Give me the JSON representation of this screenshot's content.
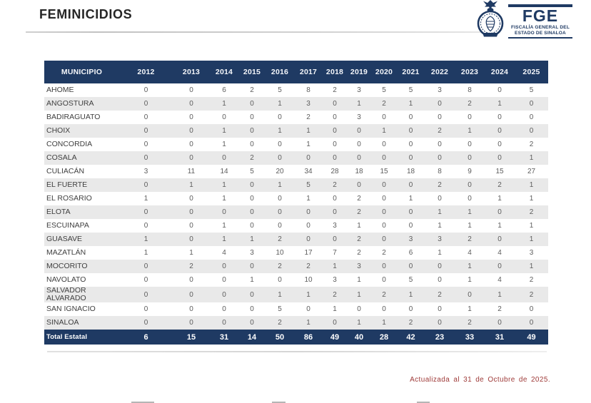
{
  "header": {
    "title": "FEMINICIDIOS"
  },
  "logo": {
    "acronym": "FGE",
    "name_line1": "FISCALÍA GENERAL DEL",
    "name_line2": "ESTADO DE SINALOA",
    "emblem": "eagle-seal-icon"
  },
  "footer": {
    "updated": "Actualizada al 31 de Octubre de 2025."
  },
  "colors": {
    "navy": "#1F3A63",
    "alt_row": "#E9E9E9",
    "note_red": "#9E3A38",
    "body_text": "#5D5D5D"
  },
  "chart_data": {
    "type": "table",
    "title": "FEMINICIDIOS",
    "columns": [
      "MUNICIPIO",
      "2012",
      "2013",
      "2014",
      "2015",
      "2016",
      "2017",
      "2018",
      "2019",
      "2020",
      "2021",
      "2022",
      "2023",
      "2024",
      "2025"
    ],
    "rows": [
      {
        "municipio": "AHOME",
        "values": [
          0,
          0,
          6,
          2,
          5,
          8,
          2,
          3,
          5,
          5,
          3,
          8,
          0,
          5
        ]
      },
      {
        "municipio": "ANGOSTURA",
        "values": [
          0,
          0,
          1,
          0,
          1,
          3,
          0,
          1,
          2,
          1,
          0,
          2,
          1,
          0
        ]
      },
      {
        "municipio": "BADIRAGUATO",
        "values": [
          0,
          0,
          0,
          0,
          0,
          2,
          0,
          3,
          0,
          0,
          0,
          0,
          0,
          0
        ]
      },
      {
        "municipio": "CHOIX",
        "values": [
          0,
          0,
          1,
          0,
          1,
          1,
          0,
          0,
          1,
          0,
          2,
          1,
          0,
          0
        ]
      },
      {
        "municipio": "CONCORDIA",
        "values": [
          0,
          0,
          1,
          0,
          0,
          1,
          0,
          0,
          0,
          0,
          0,
          0,
          0,
          2
        ]
      },
      {
        "municipio": "COSALA",
        "values": [
          0,
          0,
          0,
          2,
          0,
          0,
          0,
          0,
          0,
          0,
          0,
          0,
          0,
          1
        ]
      },
      {
        "municipio": "CULIACÁN",
        "values": [
          3,
          11,
          14,
          5,
          20,
          34,
          28,
          18,
          15,
          18,
          8,
          9,
          15,
          27
        ]
      },
      {
        "municipio": "EL FUERTE",
        "values": [
          0,
          1,
          1,
          0,
          1,
          5,
          2,
          0,
          0,
          0,
          2,
          0,
          2,
          1
        ]
      },
      {
        "municipio": "EL ROSARIO",
        "values": [
          1,
          0,
          1,
          0,
          0,
          1,
          0,
          2,
          0,
          1,
          0,
          0,
          1,
          1
        ]
      },
      {
        "municipio": "ELOTA",
        "values": [
          0,
          0,
          0,
          0,
          0,
          0,
          0,
          2,
          0,
          0,
          1,
          1,
          0,
          2
        ]
      },
      {
        "municipio": "ESCUINAPA",
        "values": [
          0,
          0,
          1,
          0,
          0,
          0,
          3,
          1,
          0,
          0,
          1,
          1,
          1,
          1
        ]
      },
      {
        "municipio": "GUASAVE",
        "values": [
          1,
          0,
          1,
          1,
          2,
          0,
          0,
          2,
          0,
          3,
          3,
          2,
          0,
          1
        ]
      },
      {
        "municipio": "MAZATLÁN",
        "values": [
          1,
          1,
          4,
          3,
          10,
          17,
          7,
          2,
          2,
          6,
          1,
          4,
          4,
          3
        ]
      },
      {
        "municipio": "MOCORITO",
        "values": [
          0,
          2,
          0,
          0,
          2,
          2,
          1,
          3,
          0,
          0,
          0,
          1,
          0,
          1
        ]
      },
      {
        "municipio": "NAVOLATO",
        "values": [
          0,
          0,
          0,
          1,
          0,
          10,
          3,
          1,
          0,
          5,
          0,
          1,
          4,
          2
        ]
      },
      {
        "municipio": "SALVADOR ALVARADO",
        "values": [
          0,
          0,
          0,
          0,
          1,
          1,
          2,
          1,
          2,
          1,
          2,
          0,
          1,
          2
        ]
      },
      {
        "municipio": "SAN IGNACIO",
        "values": [
          0,
          0,
          0,
          0,
          5,
          0,
          1,
          0,
          0,
          0,
          0,
          1,
          2,
          0
        ]
      },
      {
        "municipio": "SINALOA",
        "values": [
          0,
          0,
          0,
          0,
          2,
          1,
          0,
          1,
          1,
          2,
          0,
          2,
          0,
          0
        ]
      }
    ],
    "total_row": {
      "label": "Total Estatal",
      "values": [
        6,
        15,
        31,
        14,
        50,
        86,
        49,
        40,
        28,
        42,
        23,
        33,
        31,
        49
      ]
    },
    "layout": {
      "alternating_rows": true,
      "header_style": "navy",
      "total_row_style": "navy"
    }
  }
}
